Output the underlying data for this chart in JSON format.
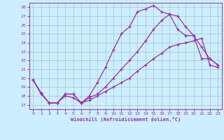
{
  "xlabel": "Windchill (Refroidissement éolien,°C)",
  "bg_color": "#cceeff",
  "grid_color": "#aacccc",
  "line_color": "#993399",
  "xlim": [
    -0.5,
    23.5
  ],
  "ylim": [
    16.5,
    28.5
  ],
  "xticks": [
    0,
    1,
    2,
    3,
    4,
    5,
    6,
    7,
    8,
    9,
    10,
    11,
    12,
    13,
    14,
    15,
    16,
    17,
    18,
    19,
    20,
    21,
    22,
    23
  ],
  "yticks": [
    17,
    18,
    19,
    20,
    21,
    22,
    23,
    24,
    25,
    26,
    27,
    28
  ],
  "line1_x": [
    0,
    1,
    2,
    3,
    4,
    5,
    6,
    7,
    8,
    9,
    10,
    11,
    12,
    13,
    14,
    15,
    16,
    17,
    18,
    19,
    20,
    21,
    22,
    23
  ],
  "line1_y": [
    19.8,
    18.3,
    17.2,
    17.2,
    18.2,
    18.2,
    17.2,
    18.0,
    19.5,
    21.2,
    23.2,
    25.0,
    25.8,
    27.5,
    27.8,
    28.2,
    27.5,
    27.2,
    27.0,
    25.8,
    24.8,
    22.2,
    22.2,
    21.5
  ],
  "line2_x": [
    0,
    1,
    2,
    3,
    4,
    5,
    6,
    7,
    8,
    9,
    10,
    11,
    12,
    13,
    14,
    15,
    16,
    17,
    18,
    19,
    20,
    21,
    22,
    23
  ],
  "line2_y": [
    19.8,
    18.3,
    17.2,
    17.2,
    18.2,
    18.2,
    17.2,
    17.8,
    18.2,
    19.0,
    20.0,
    21.0,
    22.0,
    23.0,
    24.2,
    25.5,
    26.5,
    27.2,
    25.5,
    24.8,
    24.8,
    23.5,
    22.2,
    21.5
  ],
  "line3_x": [
    0,
    1,
    2,
    3,
    4,
    5,
    6,
    7,
    8,
    9,
    10,
    11,
    12,
    13,
    14,
    15,
    16,
    17,
    18,
    19,
    20,
    21,
    22,
    23
  ],
  "line3_y": [
    19.8,
    18.2,
    17.2,
    17.2,
    18.0,
    17.8,
    17.2,
    17.5,
    18.0,
    18.5,
    19.0,
    19.5,
    20.0,
    20.8,
    21.5,
    22.2,
    22.8,
    23.5,
    23.8,
    24.0,
    24.2,
    24.5,
    21.5,
    21.2
  ]
}
